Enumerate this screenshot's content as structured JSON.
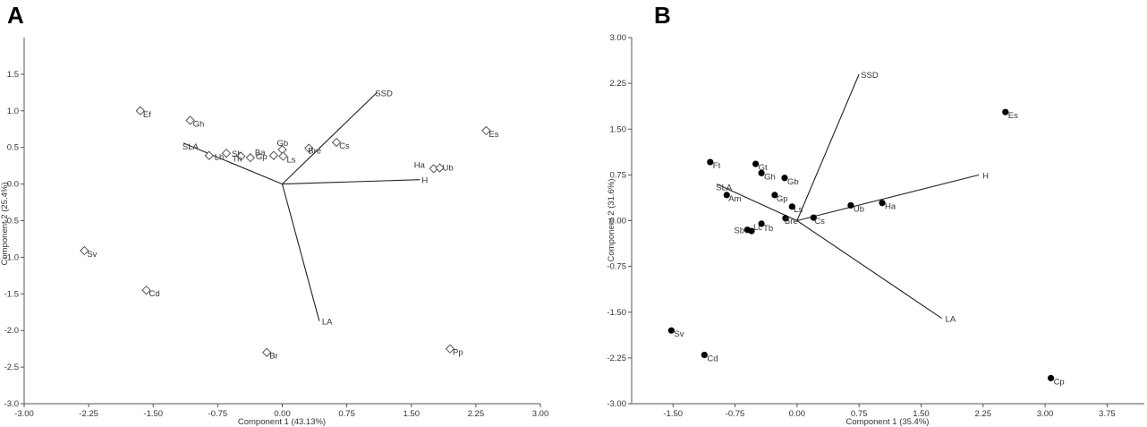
{
  "chart_data": [
    {
      "panel": "A",
      "type": "scatter",
      "subtype": "pca-biplot",
      "xlabel": "Component 1 (43.13%)",
      "ylabel": "Component 2 (25.4%)",
      "xlim": [
        -3.0,
        3.0
      ],
      "ylim": [
        -3.0,
        2.0
      ],
      "xticks": [
        "-3.00",
        "-2.25",
        "-1.50",
        "-0.75",
        "0.00",
        "0.75",
        "1.50",
        "2.25",
        "3.00"
      ],
      "yticks": [
        "-3.0",
        "-2.5",
        "-2.0",
        "-1.5",
        "-1.0",
        "-0.5",
        "0.0",
        "0.5",
        "1.0",
        "1.5"
      ],
      "marker": "diamond-open",
      "points": [
        {
          "label": "Ef",
          "x": -1.65,
          "y": 1.0
        },
        {
          "label": "Gh",
          "x": -1.07,
          "y": 0.87
        },
        {
          "label": "Lh",
          "x": -0.85,
          "y": 0.39
        },
        {
          "label": "Sb",
          "x": -0.65,
          "y": 0.42
        },
        {
          "label": "Th",
          "x": -0.48,
          "y": 0.38
        },
        {
          "label": "Gp",
          "x": -0.37,
          "y": 0.36
        },
        {
          "label": "Ba",
          "x": -0.1,
          "y": 0.39
        },
        {
          "label": "Gb",
          "x": 0.0,
          "y": 0.47
        },
        {
          "label": "Ls",
          "x": 0.01,
          "y": 0.38
        },
        {
          "label": "Bre",
          "x": 0.31,
          "y": 0.49
        },
        {
          "label": "Cs",
          "x": 0.63,
          "y": 0.57
        },
        {
          "label": "Ha",
          "x": 1.76,
          "y": 0.21
        },
        {
          "label": "Ub",
          "x": 1.83,
          "y": 0.22
        },
        {
          "label": "Es",
          "x": 2.37,
          "y": 0.73
        },
        {
          "label": "Sv",
          "x": -2.3,
          "y": -0.91
        },
        {
          "label": "Cd",
          "x": -1.58,
          "y": -1.45
        },
        {
          "label": "Br",
          "x": -0.18,
          "y": -2.3
        },
        {
          "label": "Pp",
          "x": 1.95,
          "y": -2.25
        }
      ],
      "vectors": [
        {
          "label": "SSD",
          "x": 1.1,
          "y": 1.25
        },
        {
          "label": "SLA",
          "x": -1.15,
          "y": 0.56
        },
        {
          "label": "H",
          "x": 1.6,
          "y": 0.06
        },
        {
          "label": "LA",
          "x": 0.43,
          "y": -1.87
        }
      ]
    },
    {
      "panel": "B",
      "type": "scatter",
      "subtype": "pca-biplot",
      "xlabel": "Component 1 (35.4%)",
      "ylabel": "Component 2 (31.6%)",
      "xlim": [
        -2.0,
        4.2
      ],
      "ylim": [
        -3.0,
        3.0
      ],
      "xticks": [
        "-1.50",
        "-0.75",
        "0.00",
        "0.75",
        "1.50",
        "2.25",
        "3.00",
        "3.75"
      ],
      "yticks": [
        "-3.00",
        "-2.25",
        "-1.50",
        "-0.75",
        "0.00",
        "0.75",
        "1.50",
        "2.25",
        "3.00"
      ],
      "marker": "filled-circle",
      "points": [
        {
          "label": "Es",
          "x": 2.52,
          "y": 1.78
        },
        {
          "label": "Ft",
          "x": -1.05,
          "y": 0.96
        },
        {
          "label": "Gt",
          "x": -0.5,
          "y": 0.93
        },
        {
          "label": "Gh",
          "x": -0.43,
          "y": 0.78
        },
        {
          "label": "Gb",
          "x": -0.15,
          "y": 0.7
        },
        {
          "label": "Gp",
          "x": -0.27,
          "y": 0.42
        },
        {
          "label": "Ls",
          "x": -0.06,
          "y": 0.23
        },
        {
          "label": "Am",
          "x": -0.85,
          "y": 0.42
        },
        {
          "label": "Ub",
          "x": 0.65,
          "y": 0.25
        },
        {
          "label": "Ha",
          "x": 1.03,
          "y": 0.29
        },
        {
          "label": "Bre",
          "x": -0.14,
          "y": 0.04
        },
        {
          "label": "Cs",
          "x": 0.2,
          "y": 0.05
        },
        {
          "label": "Sb",
          "x": -0.6,
          "y": -0.15
        },
        {
          "label": "Lc",
          "x": -0.55,
          "y": -0.17
        },
        {
          "label": "Tb",
          "x": -0.43,
          "y": -0.05
        },
        {
          "label": "Sv",
          "x": -1.52,
          "y": -1.8
        },
        {
          "label": "Cd",
          "x": -1.12,
          "y": -2.2
        },
        {
          "label": "Cp",
          "x": 3.07,
          "y": -2.58
        }
      ],
      "vectors": [
        {
          "label": "SSD",
          "x": 0.75,
          "y": 2.4
        },
        {
          "label": "SLA",
          "x": -0.97,
          "y": 0.6
        },
        {
          "label": "H",
          "x": 2.2,
          "y": 0.75
        },
        {
          "label": "LA",
          "x": 1.75,
          "y": -1.6
        }
      ]
    }
  ]
}
